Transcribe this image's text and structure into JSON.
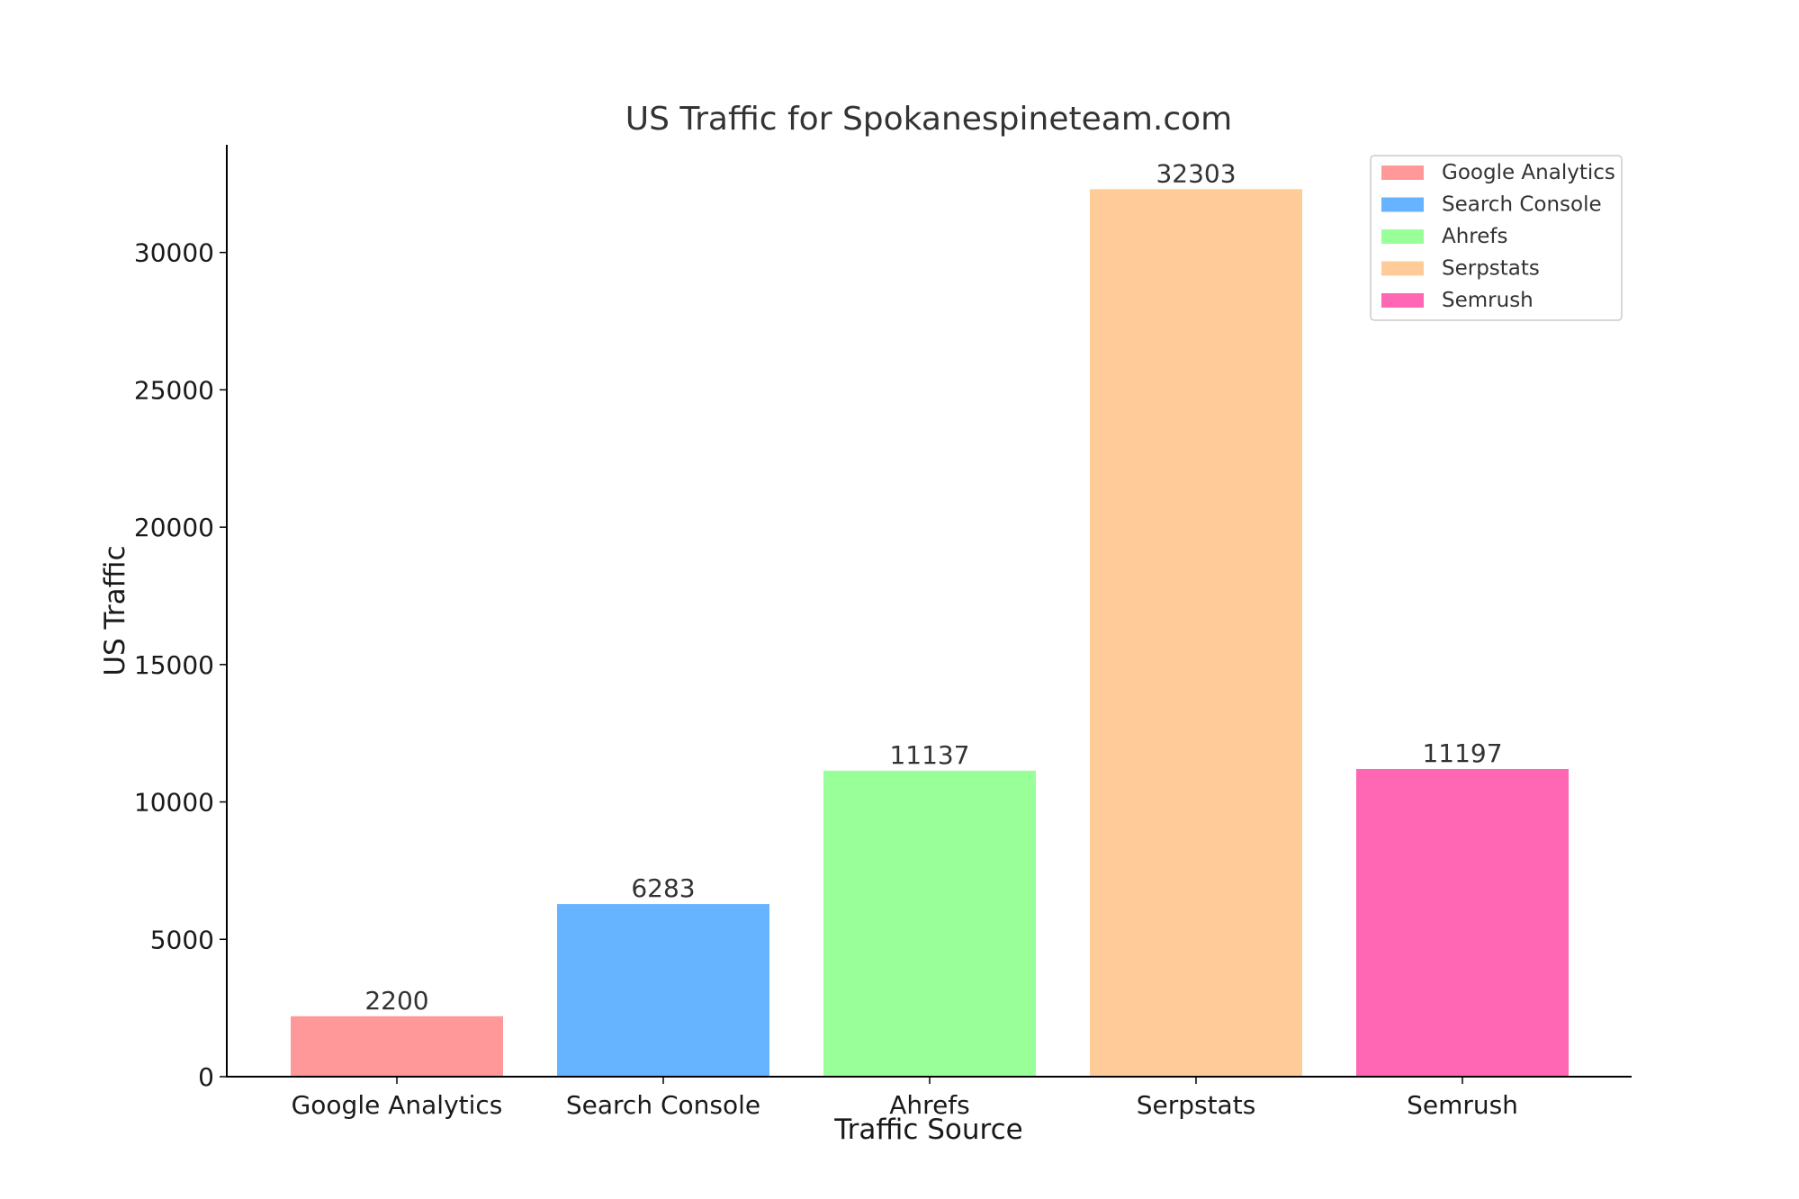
{
  "chart_data": {
    "type": "bar",
    "title": "US Traffic for Spokanespineteam.com",
    "xlabel": "Traffic Source",
    "ylabel": "US Traffic",
    "categories": [
      "Google Analytics",
      "Search Console",
      "Ahrefs",
      "Serpstats",
      "Semrush"
    ],
    "values": [
      2200,
      6283,
      11137,
      32303,
      11197
    ],
    "colors": [
      "#ff9999",
      "#66b3ff",
      "#99ff99",
      "#ffcc99",
      "#ff66b3"
    ],
    "yticks": [
      0,
      5000,
      10000,
      15000,
      20000,
      25000,
      30000
    ],
    "ylim": [
      0,
      33918
    ],
    "grid": false,
    "legend": {
      "position": "top-right",
      "entries": [
        "Google Analytics",
        "Search Console",
        "Ahrefs",
        "Serpstats",
        "Semrush"
      ]
    }
  }
}
